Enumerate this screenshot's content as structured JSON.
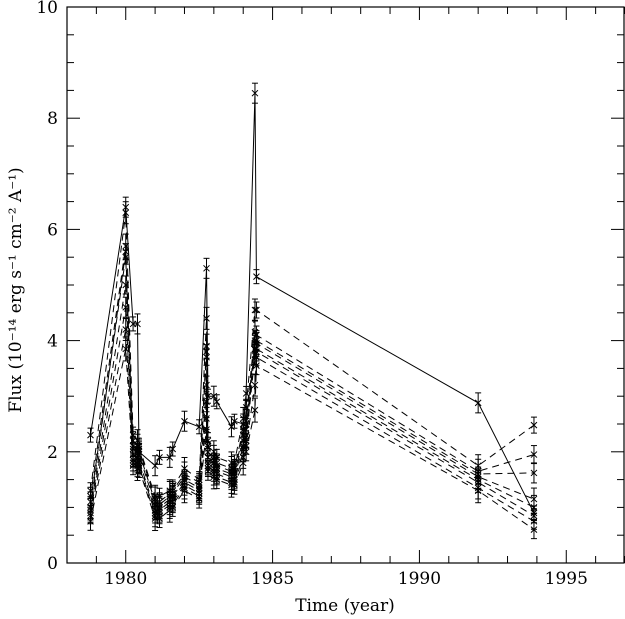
{
  "chart_data": {
    "type": "line",
    "xlabel": "Time (year)",
    "ylabel": "Flux (10⁻¹⁴ erg s⁻¹ cm⁻² A⁻¹)",
    "xlim": [
      1978,
      1997
    ],
    "ylim": [
      0,
      10
    ],
    "x_ticks": [
      1980,
      1985,
      1990,
      1995
    ],
    "y_ticks": [
      0,
      2,
      4,
      6,
      8,
      10
    ],
    "x_tick_labels": [
      "1980",
      "1985",
      "1990",
      "1995"
    ],
    "y_tick_labels": [
      "0",
      "2",
      "4",
      "6",
      "8",
      "10"
    ],
    "grid": false,
    "markers": "x with error bars",
    "x": [
      1978.8,
      1980.0,
      1980.25,
      1980.4,
      1980.45,
      1981.0,
      1981.15,
      1981.5,
      1981.6,
      1982.0,
      1982.5,
      1982.75,
      1982.8,
      1983.0,
      1983.1,
      1983.6,
      1983.7,
      1984.0,
      1984.1,
      1984.4,
      1984.45,
      1992.0,
      1993.9
    ],
    "series": [
      {
        "style": "solid",
        "values": [
          2.3,
          6.4,
          4.3,
          4.3,
          2.0,
          1.75,
          1.9,
          1.9,
          2.05,
          2.55,
          2.45,
          5.3,
          3.0,
          3.0,
          2.9,
          2.45,
          2.55,
          2.5,
          3.05,
          8.45,
          5.15,
          2.88,
          0.9
        ]
      },
      {
        "style": "dashed",
        "values": [
          1.3,
          6.3,
          2.3,
          2.2,
          2.1,
          1.2,
          1.2,
          1.3,
          1.35,
          1.7,
          1.5,
          4.4,
          2.2,
          2.0,
          1.9,
          1.8,
          1.8,
          2.6,
          2.8,
          4.55,
          4.55,
          1.75,
          2.48
        ]
      },
      {
        "style": "dashed",
        "values": [
          1.2,
          5.7,
          2.2,
          2.1,
          2.05,
          1.15,
          1.1,
          1.25,
          1.3,
          1.6,
          1.45,
          3.9,
          2.1,
          1.9,
          1.8,
          1.7,
          1.7,
          2.4,
          2.6,
          4.15,
          4.1,
          1.65,
          1.95
        ]
      },
      {
        "style": "dashed",
        "values": [
          1.1,
          5.5,
          2.1,
          2.05,
          2.0,
          1.1,
          1.05,
          1.2,
          1.25,
          1.55,
          1.4,
          3.8,
          2.0,
          1.85,
          1.75,
          1.65,
          1.65,
          2.3,
          2.5,
          4.0,
          4.0,
          1.6,
          1.62
        ]
      },
      {
        "style": "dashed",
        "values": [
          1.0,
          5.6,
          2.05,
          2.0,
          1.95,
          1.05,
          1.0,
          1.15,
          1.2,
          1.5,
          1.35,
          3.7,
          1.9,
          1.8,
          1.7,
          1.6,
          1.6,
          2.2,
          2.4,
          3.95,
          3.95,
          1.55,
          1.15
        ]
      },
      {
        "style": "dashed",
        "values": [
          0.95,
          5.0,
          1.95,
          1.9,
          1.85,
          0.95,
          0.95,
          1.1,
          1.15,
          1.45,
          1.3,
          3.2,
          1.8,
          1.7,
          1.65,
          1.55,
          1.55,
          2.1,
          2.3,
          3.85,
          3.85,
          1.5,
          1.0
        ]
      },
      {
        "style": "dashed",
        "values": [
          0.9,
          4.6,
          1.85,
          1.8,
          1.8,
          0.9,
          0.9,
          1.05,
          1.1,
          1.4,
          1.25,
          2.9,
          1.75,
          1.65,
          1.6,
          1.5,
          1.5,
          2.0,
          2.2,
          3.75,
          3.8,
          1.45,
          0.85
        ]
      },
      {
        "style": "dashed",
        "values": [
          0.85,
          4.2,
          1.8,
          1.75,
          1.75,
          0.85,
          0.85,
          1.0,
          1.05,
          1.35,
          1.2,
          2.6,
          1.7,
          1.6,
          1.55,
          1.45,
          1.45,
          1.9,
          2.1,
          3.2,
          3.7,
          1.35,
          0.75
        ]
      },
      {
        "style": "dashed",
        "values": [
          0.75,
          3.85,
          1.75,
          1.7,
          1.7,
          0.8,
          0.8,
          0.95,
          1.0,
          1.3,
          1.15,
          2.4,
          1.65,
          1.55,
          1.5,
          1.4,
          1.4,
          1.8,
          2.0,
          2.75,
          3.55,
          1.3,
          0.6
        ]
      }
    ]
  }
}
